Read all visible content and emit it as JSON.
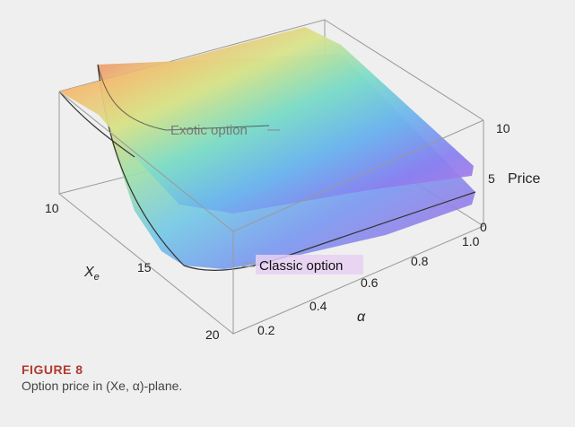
{
  "caption": {
    "figure_number": "FIGURE 8",
    "text": "Option price in (Xe, α)-plane."
  },
  "chart_data": {
    "type": "surface3d",
    "title": "",
    "axes": {
      "x": {
        "label": "Xe",
        "range": [
          9,
          20
        ],
        "ticks": [
          "10",
          "15",
          "20"
        ]
      },
      "y": {
        "label": "α",
        "range": [
          0.1,
          1.0
        ],
        "ticks": [
          "0.2",
          "0.4",
          "0.6",
          "0.8",
          "1.0"
        ]
      },
      "z": {
        "label": "Price",
        "range": [
          0,
          12
        ],
        "ticks": [
          "0",
          "5",
          "10"
        ]
      }
    },
    "series": [
      {
        "name": "Exotic option",
        "note_price_range": [
          4,
          12
        ]
      },
      {
        "name": "Classic option",
        "note_price_range": [
          0,
          11
        ]
      }
    ],
    "colormap": "rainbow",
    "box": true,
    "grid": false
  }
}
